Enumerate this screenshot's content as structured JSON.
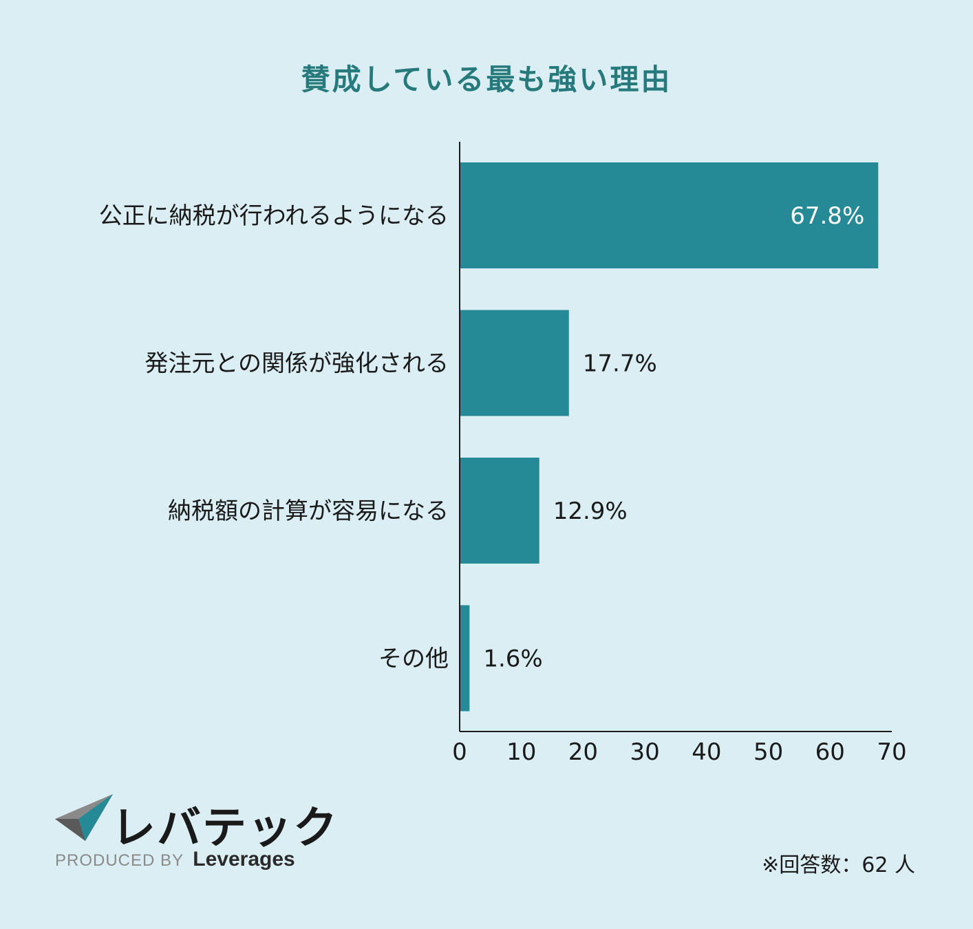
{
  "title": "賛成している最も強い理由",
  "chart_data": {
    "type": "bar",
    "orientation": "horizontal",
    "categories": [
      "公正に納税が行われるようになる",
      "発注元との関係が強化される",
      "納税額の計算が容易になる",
      "その他"
    ],
    "values": [
      67.8,
      17.7,
      12.9,
      1.6
    ],
    "value_labels": [
      "67.8%",
      "17.7%",
      "12.9%",
      "1.6%"
    ],
    "xlim": [
      0,
      70
    ],
    "xticks": [
      0,
      10,
      20,
      30,
      40,
      50,
      60,
      70
    ],
    "bar_color": "#268a96",
    "grid": false,
    "legend": "none"
  },
  "footer": {
    "brand": "レバテック",
    "produced_by": "PRODUCED BY",
    "company": "Leverages",
    "note": "※回答数：62 人"
  },
  "colors": {
    "background": "#daeef3",
    "title": "#277a7c",
    "bar": "#268a96"
  }
}
